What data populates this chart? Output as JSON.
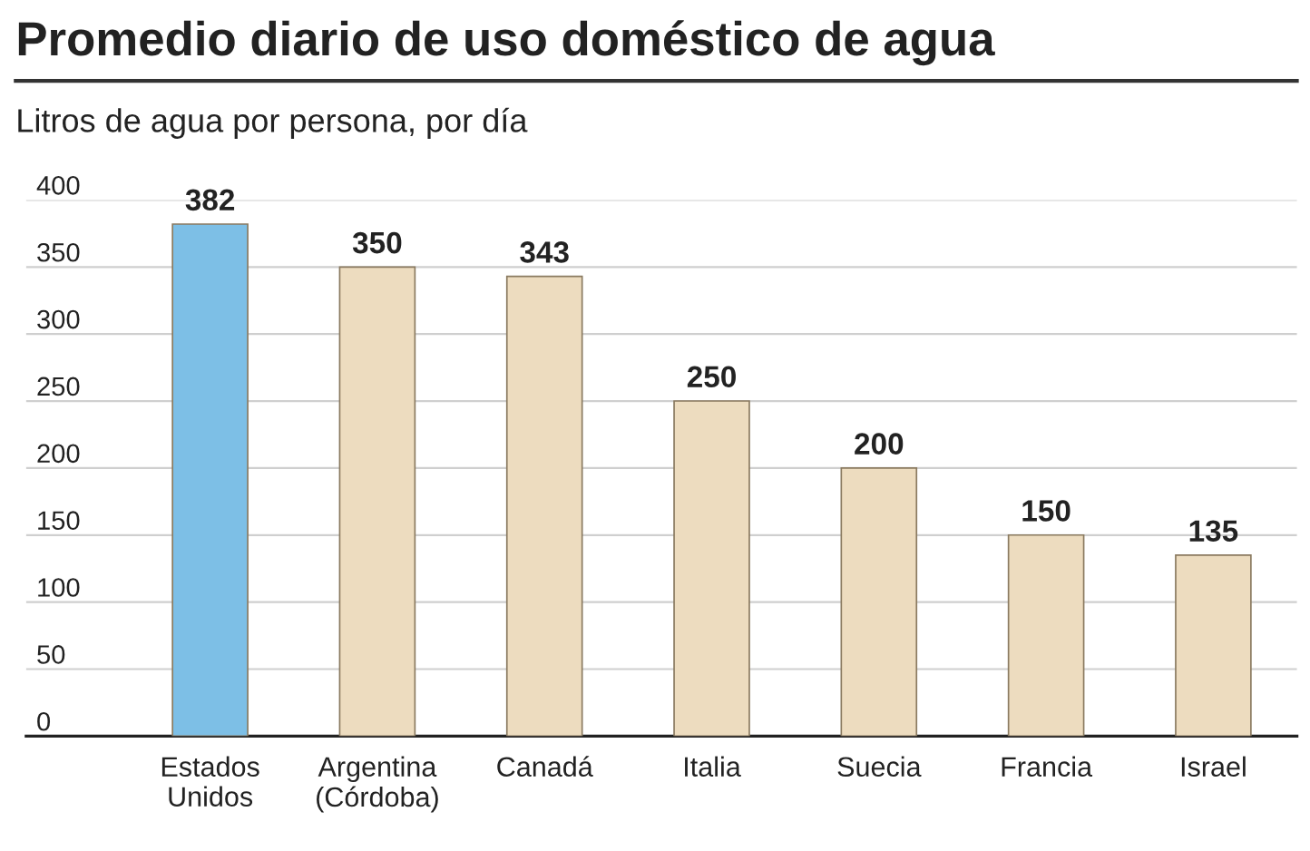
{
  "chart_data": {
    "type": "bar",
    "title": "Promedio diario de uso doméstico de agua",
    "subtitle": "Litros de agua por persona, por día",
    "categories": [
      "Estados\nUnidos",
      "Argentina\n(Córdoba)",
      "Canadá",
      "Italia",
      "Suecia",
      "Francia",
      "Israel"
    ],
    "values": [
      382,
      350,
      343,
      250,
      200,
      150,
      135
    ],
    "colors": [
      "#7dbfe6",
      "#eddcbf",
      "#eddcbf",
      "#eddcbf",
      "#eddcbf",
      "#eddcbf",
      "#eddcbf"
    ],
    "ylim": [
      0,
      400
    ],
    "yticks": [
      0,
      50,
      100,
      150,
      200,
      250,
      300,
      350,
      400
    ],
    "grid": "y",
    "data_labels": true
  }
}
